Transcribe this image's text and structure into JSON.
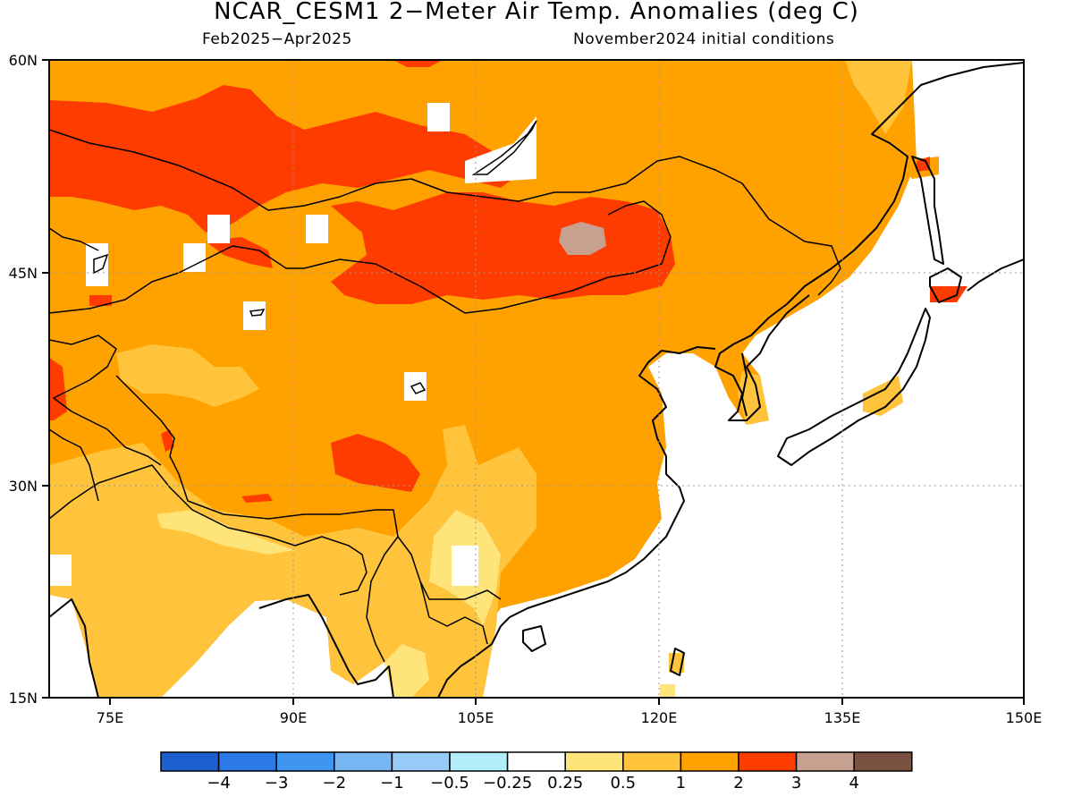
{
  "title": "NCAR_CESM1 2−Meter Air Temp. Anomalies (deg C)",
  "subtitle_left": "Feb2025−Apr2025",
  "subtitle_right": "November2024 initial conditions",
  "map": {
    "lon_range": [
      70,
      150
    ],
    "lat_range": [
      15,
      60
    ],
    "lat_labels": [
      "15N",
      "30N",
      "45N",
      "60N"
    ],
    "lon_labels": [
      "75E",
      "90E",
      "105E",
      "120E",
      "135E",
      "150E"
    ],
    "grid": true
  },
  "colorbar": {
    "colors": [
      "#1d5fd0",
      "#2b79e6",
      "#3f95f2",
      "#78b5f3",
      "#96caf7",
      "#b2eefa",
      "#ffffff",
      "#ffe47a",
      "#ffc43c",
      "#ffa200",
      "#ff3c00",
      "#c8a090",
      "#7a5040"
    ],
    "labels": [
      "−4",
      "−3",
      "−2",
      "−1",
      "−0.5",
      "−0.25",
      "0.25",
      "0.5",
      "1",
      "2",
      "3",
      "4"
    ]
  },
  "shading_colors": {
    "anom_0_25_0_5": "#ffe47a",
    "anom_0_5_1": "#ffc43c",
    "anom_1_2": "#ffa200",
    "anom_2_3": "#ff3c00",
    "anom_3_4": "#c8a090"
  }
}
